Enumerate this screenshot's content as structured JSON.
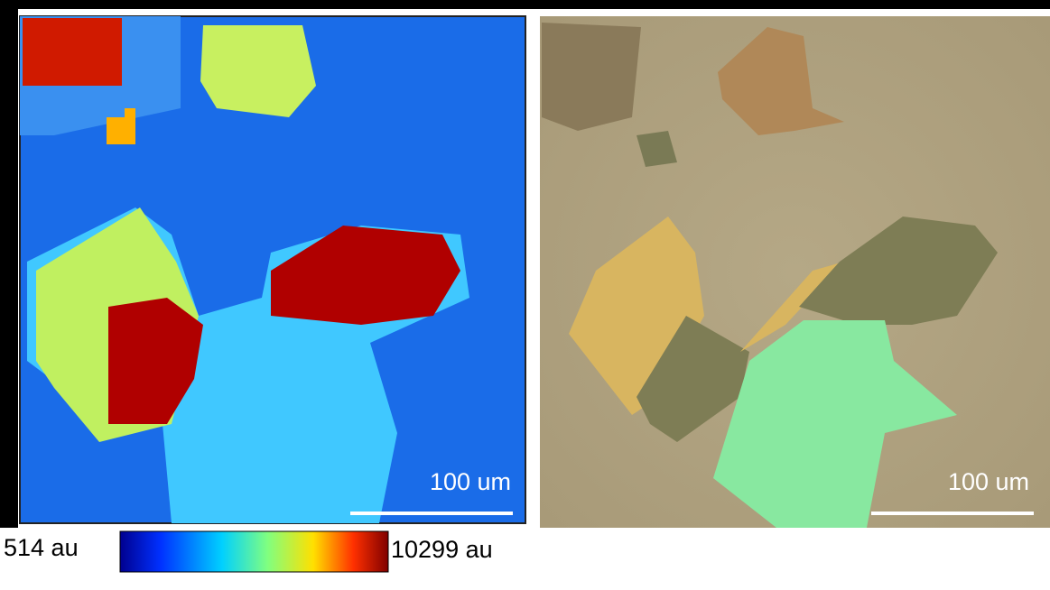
{
  "left_panel": {
    "scale_bar": "100 um"
  },
  "right_panel": {
    "scale_bar": "100 um"
  },
  "colorbar": {
    "min_label": "514 au",
    "max_label": "10299 au"
  }
}
